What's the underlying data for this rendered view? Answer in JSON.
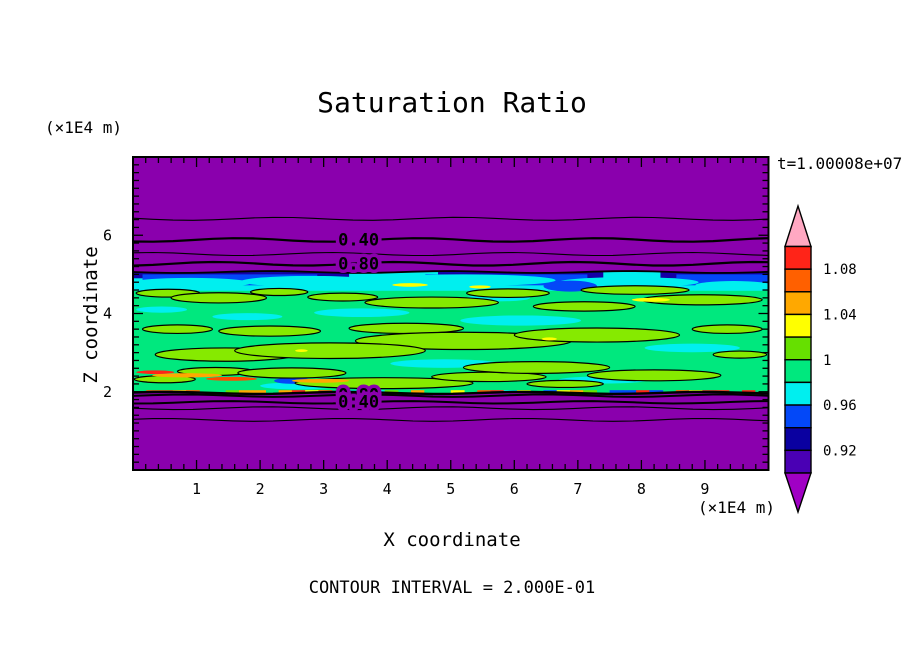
{
  "chart_data": {
    "type": "filled_contour",
    "title": "Saturation Ratio",
    "time_label": "t=1.00008e+07",
    "contour_interval_label": "CONTOUR INTERVAL = 2.000E-01",
    "x": {
      "label": "X coordinate",
      "unit": "(×1E4 m)",
      "range": [
        0,
        10
      ],
      "major_ticks": [
        1,
        2,
        3,
        4,
        5,
        6,
        7,
        8,
        9
      ],
      "minor_step": 0.2
    },
    "z": {
      "label": "Z coordinate",
      "unit": "(×1E4 m)",
      "range": [
        0,
        8
      ],
      "major_ticks": [
        2,
        4,
        6
      ],
      "minor_step": 0.2
    },
    "colorbar": {
      "tick_labels": [
        "1.08",
        "1.04",
        "1",
        "0.96",
        "0.92"
      ],
      "boundary_values_top_to_bottom": [
        1.1,
        1.08,
        1.06,
        1.04,
        1.02,
        1.0,
        0.98,
        0.96,
        0.94,
        0.92,
        0.9
      ],
      "segment_colors_top_to_bottom": [
        "#FF2418",
        "#FF6000",
        "#FFA800",
        "#FFFF00",
        "#66E000",
        "#00E87E",
        "#00EFEF",
        "#0348F8",
        "#0A00A0",
        "#4A00B4"
      ],
      "over_color": "#FFA8C2",
      "under_color": "#A000C4"
    },
    "field": {
      "background_color": "#8A00AD",
      "colors": {
        "cyan": "#00EFEF",
        "chartreuse": "#86EA00",
        "yellow": "#FFFF00",
        "blue": "#0348F8",
        "navy": "#1400A6"
      },
      "band": {
        "z_top": 5.06,
        "z_bottom": 1.97,
        "color": "#00E87E"
      },
      "top_stripe": {
        "cyan": {
          "color": "#00EFEF",
          "z_top": 5.06,
          "z_bottom": 4.58
        },
        "navy": {
          "color": "#1400A6",
          "z_top": 5.06,
          "z_bottom": 4.9,
          "x_ranges": [
            [
              0,
              3.4
            ],
            [
              4.8,
              7.4
            ],
            [
              8.3,
              10
            ]
          ]
        },
        "blue": {
          "color": "#0348F8",
          "z_top": 5.0,
          "z_bottom": 4.72,
          "x_ranges": [
            [
              0.15,
              2.9
            ],
            [
              4.6,
              7.15
            ],
            [
              8.55,
              10
            ]
          ]
        }
      },
      "green_blobs": [
        [
          0.55,
          4.52,
          0.5,
          0.1
        ],
        [
          1.35,
          4.4,
          0.75,
          0.13
        ],
        [
          2.3,
          4.55,
          0.45,
          0.09
        ],
        [
          3.3,
          4.42,
          0.55,
          0.1
        ],
        [
          4.7,
          4.28,
          1.05,
          0.14
        ],
        [
          5.9,
          4.52,
          0.65,
          0.11
        ],
        [
          7.1,
          4.18,
          0.8,
          0.12
        ],
        [
          7.9,
          4.6,
          0.85,
          0.11
        ],
        [
          8.95,
          4.35,
          0.95,
          0.13
        ],
        [
          0.7,
          3.6,
          0.55,
          0.11
        ],
        [
          2.15,
          3.55,
          0.8,
          0.13
        ],
        [
          4.3,
          3.62,
          0.9,
          0.13
        ],
        [
          5.2,
          3.3,
          1.7,
          0.22
        ],
        [
          7.3,
          3.45,
          1.3,
          0.18
        ],
        [
          9.35,
          3.6,
          0.55,
          0.11
        ],
        [
          1.45,
          2.95,
          1.1,
          0.17
        ],
        [
          3.1,
          3.05,
          1.5,
          0.2
        ],
        [
          9.55,
          2.95,
          0.42,
          0.09
        ],
        [
          0.5,
          2.32,
          0.48,
          0.09
        ],
        [
          1.3,
          2.52,
          0.6,
          0.1
        ],
        [
          2.5,
          2.48,
          0.85,
          0.13
        ],
        [
          3.95,
          2.22,
          1.4,
          0.14
        ],
        [
          5.6,
          2.38,
          0.9,
          0.12
        ],
        [
          6.35,
          2.62,
          1.15,
          0.15
        ],
        [
          8.2,
          2.42,
          1.05,
          0.14
        ],
        [
          6.8,
          2.2,
          0.6,
          0.09
        ]
      ],
      "cyan_patches": [
        [
          0.9,
          4.78,
          0.95,
          0.13
        ],
        [
          2.8,
          4.82,
          1.1,
          0.14
        ],
        [
          5.2,
          4.85,
          1.45,
          0.15
        ],
        [
          7.8,
          4.8,
          1.1,
          0.13
        ],
        [
          9.45,
          4.72,
          0.6,
          0.11
        ],
        [
          3.6,
          4.02,
          0.75,
          0.11
        ],
        [
          6.1,
          3.82,
          0.95,
          0.13
        ],
        [
          8.8,
          3.12,
          0.75,
          0.11
        ],
        [
          1.8,
          3.92,
          0.55,
          0.09
        ],
        [
          4.9,
          2.72,
          0.85,
          0.11
        ],
        [
          7.4,
          2.3,
          0.7,
          0.09
        ],
        [
          2.6,
          2.15,
          0.6,
          0.09
        ],
        [
          5.75,
          4.4,
          0.5,
          0.09
        ],
        [
          0.45,
          4.1,
          0.4,
          0.08
        ]
      ],
      "yellow_specks": [
        [
          4.36,
          4.73,
          0.28,
          0.045
        ],
        [
          5.46,
          4.68,
          0.17,
          0.04
        ],
        [
          8.15,
          4.35,
          0.3,
          0.05
        ],
        [
          6.55,
          3.35,
          0.12,
          0.04
        ],
        [
          2.65,
          3.05,
          0.1,
          0.035
        ]
      ],
      "blue_patches": [
        [
          6.88,
          4.7,
          0.42,
          0.14
        ],
        [
          2.52,
          2.28,
          0.3,
          0.08
        ]
      ],
      "orange_streaks": [
        [
          0.85,
          2.42,
          0.55,
          0.055,
          "#FFA800"
        ],
        [
          1.55,
          2.33,
          0.4,
          0.05,
          "#FF4A00"
        ],
        [
          2.95,
          2.28,
          0.45,
          0.05,
          "#FFA800"
        ],
        [
          0.35,
          2.5,
          0.3,
          0.045,
          "#FF2418"
        ]
      ],
      "bottom_speckles": {
        "z_base": 1.97,
        "count": 48,
        "palette": [
          "#FF2418",
          "#FFA800",
          "#FFFF00",
          "#66E000",
          "#00EFEF",
          "#0348F8",
          "#FF5A00",
          "#00E87E"
        ]
      },
      "contour_lines": [
        {
          "z": 6.42,
          "w": 1.1,
          "amp": 1.5
        },
        {
          "z": 5.88,
          "w": 2.2,
          "amp": 1.8
        },
        {
          "z": 5.52,
          "w": 1.1,
          "amp": 1.5
        },
        {
          "z": 5.27,
          "w": 2.2,
          "amp": 1.8
        },
        {
          "z": 5.06,
          "w": 1.8,
          "amp": 1.0
        },
        {
          "z": 1.97,
          "w": 2.4,
          "amp": 1.0
        },
        {
          "z": 1.9,
          "w": 2.0,
          "amp": 1.2
        },
        {
          "z": 1.73,
          "w": 2.0,
          "amp": 1.2
        },
        {
          "z": 1.58,
          "w": 1.1,
          "amp": 1.4
        },
        {
          "z": 1.28,
          "w": 1.1,
          "amp": 1.4
        }
      ],
      "inline_labels": [
        {
          "text": "0.40",
          "x": 3.55,
          "z": 5.88
        },
        {
          "text": "0.80",
          "x": 3.55,
          "z": 5.27
        },
        {
          "text": "0.80",
          "x": 3.55,
          "z": 1.92
        },
        {
          "text": "0.40",
          "x": 3.55,
          "z": 1.74
        }
      ]
    }
  }
}
